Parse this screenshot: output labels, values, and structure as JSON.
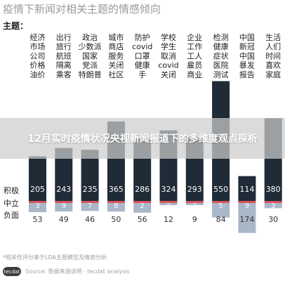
{
  "title": "疫情下新闻对相关主题的情感倾向",
  "topic_label": "主题：",
  "row_labels": {
    "positive": "积极",
    "neutral": "中立",
    "negative": "负面"
  },
  "banner": "12月实时疫情状况央视新闻报道下的多维度观点探析",
  "footer_note": "*相关性评分基于LDA主题模型及情感分析",
  "source_text": "Source: 数据来源说明 · tecdat analysis",
  "logo_text": "tecdat",
  "colors": {
    "positive": "#1f2b36",
    "neutral": "#d9535a",
    "negative": "#a9b7c9"
  },
  "chart_data": {
    "type": "bar",
    "categories": [
      [
        "经济",
        "市场",
        "公司",
        "价格",
        "油价"
      ],
      [
        "出行",
        "旅行",
        "航班",
        "隔离",
        "乘客"
      ],
      [
        "政治",
        "少数派",
        "国家",
        "党派",
        "特朗普"
      ],
      [
        "城市",
        "商店",
        "服务",
        "关闭",
        "社区"
      ],
      [
        "防护",
        "covid",
        "口罩",
        "健康",
        "手"
      ],
      [
        "学校",
        "学生",
        "取消",
        "covid",
        "关闭"
      ],
      [
        "企业",
        "工作",
        "工人",
        "雇员",
        "商业"
      ],
      [
        "检测",
        "健康",
        "症状",
        "医院",
        "测试"
      ],
      [
        "中国",
        "新冠",
        "中国",
        "暴发",
        "报告"
      ],
      [
        "生活",
        "人们",
        "时间",
        "喜欢",
        "家庭"
      ]
    ],
    "series": [
      {
        "name": "积极",
        "values": [
          205,
          243,
          235,
          365,
          286,
          324,
          293,
          550,
          114,
          380
        ]
      },
      {
        "name": "中立",
        "values": [
          3,
          9,
          7,
          8,
          2,
          2,
          2,
          5,
          9,
          3
        ]
      },
      {
        "name": "负面",
        "values": [
          53,
          49,
          46,
          50,
          56,
          12,
          9,
          84,
          174,
          30
        ]
      }
    ]
  }
}
